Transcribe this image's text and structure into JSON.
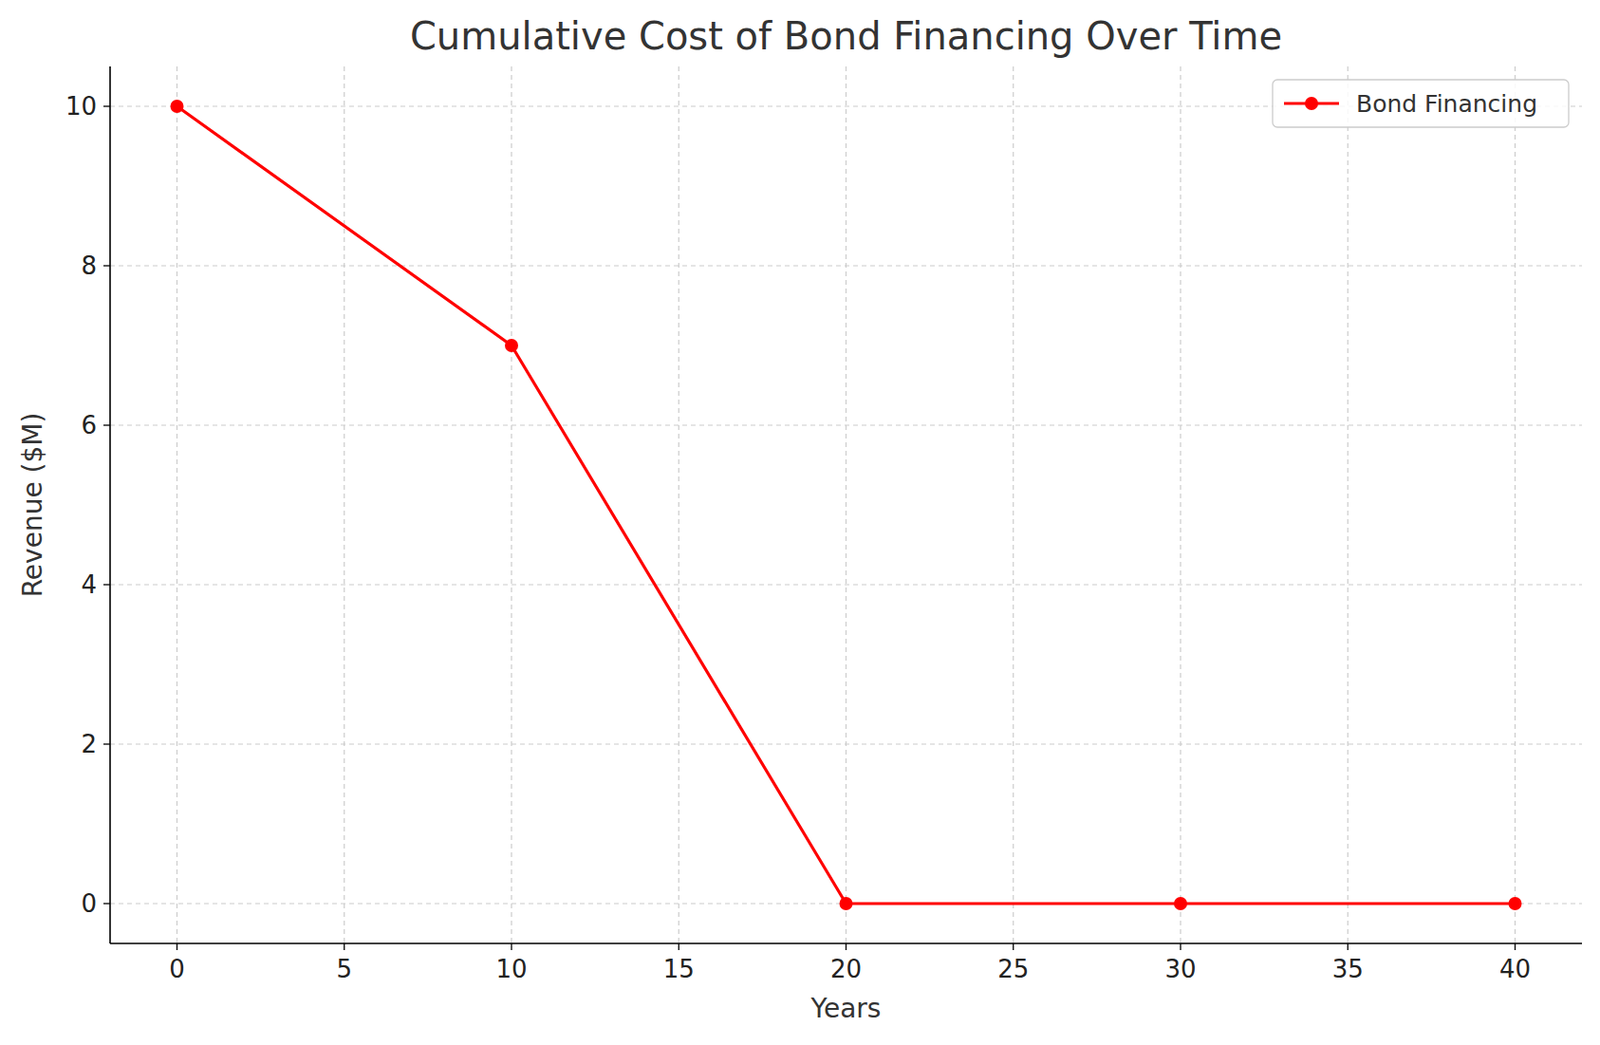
{
  "chart_data": {
    "type": "line",
    "title": "Cumulative Cost of Bond Financing Over Time",
    "x_label": "Years",
    "y_label": "Revenue ($M)",
    "x": [
      0,
      10,
      20,
      30,
      40
    ],
    "series": [
      {
        "name": "Bond Financing",
        "color": "#ff0000",
        "values": [
          10,
          7,
          0,
          0,
          0
        ],
        "marker": "circle",
        "line_style": "solid"
      }
    ],
    "xlim": [
      -2,
      42
    ],
    "xticks": [
      0,
      5,
      10,
      15,
      20,
      25,
      30,
      35,
      40
    ],
    "ylim": [
      -0.5,
      10.5
    ],
    "yticks": [
      0,
      2,
      4,
      6,
      8,
      10
    ],
    "grid": true,
    "legend": "upper right"
  }
}
